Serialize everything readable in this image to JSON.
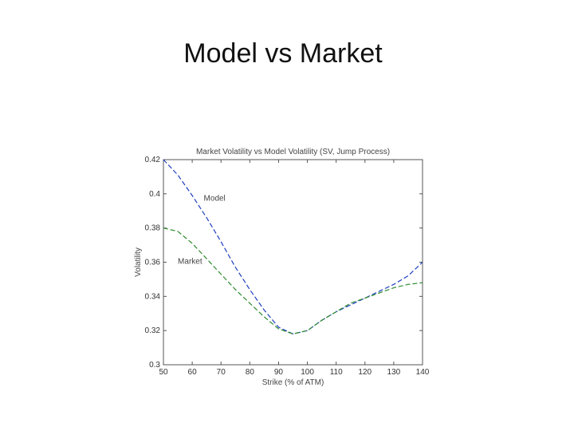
{
  "slide": {
    "title": "Model vs Market"
  },
  "chart_data": {
    "type": "line",
    "title": "Market Volatility vs Model Volatility (SV, Jump Process)",
    "xlabel": "Strike (% of ATM)",
    "ylabel": "Volatility",
    "xlim": [
      50,
      140
    ],
    "ylim": [
      0.3,
      0.42
    ],
    "xticks": [
      "50",
      "60",
      "70",
      "80",
      "90",
      "100",
      "110",
      "120",
      "130",
      "140"
    ],
    "yticks": [
      "0.3",
      "0.32",
      "0.34",
      "0.36",
      "0.38",
      "0.4",
      "0.42"
    ],
    "grid": false,
    "legend": "none",
    "series": [
      {
        "name": "Model",
        "color": "#1f3fbf",
        "dash": "6,3",
        "x": [
          50,
          55,
          60,
          65,
          70,
          75,
          80,
          85,
          90,
          95,
          100,
          105,
          110,
          115,
          120,
          125,
          130,
          135,
          140
        ],
        "y": [
          0.42,
          0.411,
          0.399,
          0.386,
          0.372,
          0.357,
          0.344,
          0.332,
          0.322,
          0.318,
          0.32,
          0.326,
          0.331,
          0.335,
          0.339,
          0.343,
          0.347,
          0.352,
          0.36
        ]
      },
      {
        "name": "Market",
        "color": "#2e8b2e",
        "dash": "6,3",
        "x": [
          50,
          55,
          60,
          65,
          70,
          75,
          80,
          85,
          90,
          95,
          100,
          105,
          110,
          115,
          120,
          125,
          130,
          135,
          140
        ],
        "y": [
          0.38,
          0.378,
          0.371,
          0.362,
          0.353,
          0.344,
          0.336,
          0.328,
          0.321,
          0.318,
          0.32,
          0.326,
          0.331,
          0.336,
          0.339,
          0.342,
          0.345,
          0.347,
          0.348
        ]
      }
    ],
    "annotations": [
      {
        "text": "Model",
        "x": 64,
        "y": 0.396
      },
      {
        "text": "Market",
        "x": 55,
        "y": 0.359
      }
    ]
  }
}
